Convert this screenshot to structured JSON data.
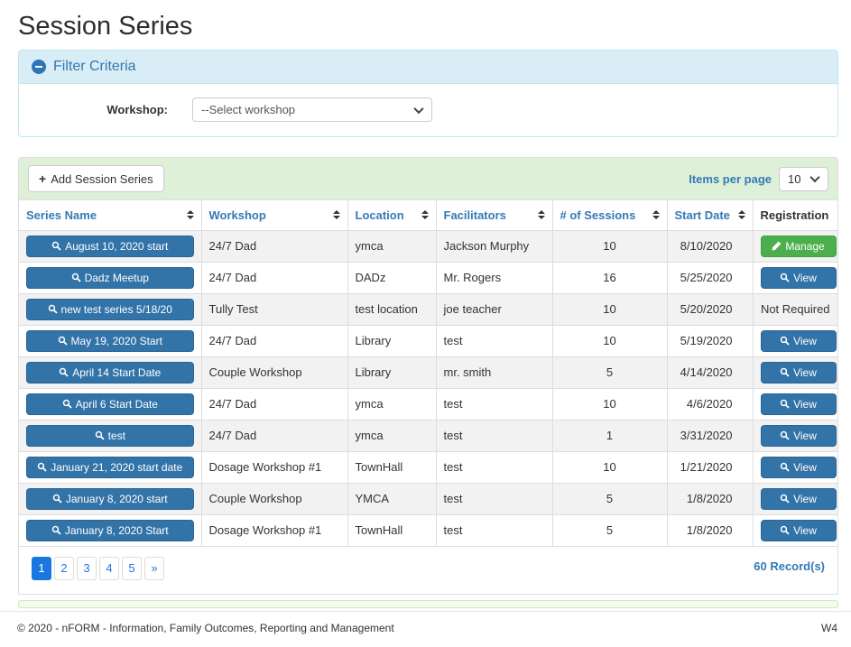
{
  "page": {
    "title": "Session Series"
  },
  "filter": {
    "title": "Filter Criteria",
    "collapse_icon": "minus-circle-icon",
    "workshop_label": "Workshop:",
    "workshop_value": "--Select workshop"
  },
  "toolbar": {
    "add_label": "Add Session Series",
    "add_icon": "plus-icon",
    "items_per_page_label": "Items per page",
    "items_per_page_value": "10"
  },
  "table": {
    "columns": [
      {
        "label": "Series Name",
        "sortable": true
      },
      {
        "label": "Workshop",
        "sortable": true
      },
      {
        "label": "Location",
        "sortable": true
      },
      {
        "label": "Facilitators",
        "sortable": true
      },
      {
        "label": "# of Sessions",
        "sortable": true
      },
      {
        "label": "Start Date",
        "sortable": true
      },
      {
        "label": "Registration",
        "sortable": false
      }
    ],
    "rows": [
      {
        "series_name": "August 10, 2020 start",
        "workshop": "24/7 Dad",
        "location": "ymca",
        "facilitators": "Jackson Murphy",
        "sessions": "10",
        "start_date": "8/10/2020",
        "registration": {
          "type": "manage",
          "label": "Manage"
        }
      },
      {
        "series_name": "Dadz Meetup",
        "workshop": "24/7 Dad",
        "location": "DADz",
        "facilitators": "Mr. Rogers",
        "sessions": "16",
        "start_date": "5/25/2020",
        "registration": {
          "type": "view",
          "label": "View"
        }
      },
      {
        "series_name": "new test series 5/18/20",
        "workshop": "Tully Test",
        "location": "test location",
        "facilitators": "joe teacher",
        "sessions": "10",
        "start_date": "5/20/2020",
        "registration": {
          "type": "text",
          "label": "Not Required"
        }
      },
      {
        "series_name": "May 19, 2020 Start",
        "workshop": "24/7 Dad",
        "location": "Library",
        "facilitators": "test",
        "sessions": "10",
        "start_date": "5/19/2020",
        "registration": {
          "type": "view",
          "label": "View"
        }
      },
      {
        "series_name": "April 14 Start Date",
        "workshop": "Couple Workshop",
        "location": "Library",
        "facilitators": "mr. smith",
        "sessions": "5",
        "start_date": "4/14/2020",
        "registration": {
          "type": "view",
          "label": "View"
        }
      },
      {
        "series_name": "April 6 Start Date",
        "workshop": "24/7 Dad",
        "location": "ymca",
        "facilitators": "test",
        "sessions": "10",
        "start_date": "4/6/2020",
        "registration": {
          "type": "view",
          "label": "View"
        }
      },
      {
        "series_name": "test",
        "workshop": "24/7 Dad",
        "location": "ymca",
        "facilitators": "test",
        "sessions": "1",
        "start_date": "3/31/2020",
        "registration": {
          "type": "view",
          "label": "View"
        }
      },
      {
        "series_name": "January 21, 2020 start date",
        "workshop": "Dosage Workshop #1",
        "location": "TownHall",
        "facilitators": "test",
        "sessions": "10",
        "start_date": "1/21/2020",
        "registration": {
          "type": "view",
          "label": "View"
        }
      },
      {
        "series_name": "January 8, 2020 start",
        "workshop": "Couple Workshop",
        "location": "YMCA",
        "facilitators": "test",
        "sessions": "5",
        "start_date": "1/8/2020",
        "registration": {
          "type": "view",
          "label": "View"
        }
      },
      {
        "series_name": "January 8, 2020 Start",
        "workshop": "Dosage Workshop #1",
        "location": "TownHall",
        "facilitators": "test",
        "sessions": "5",
        "start_date": "1/8/2020",
        "registration": {
          "type": "view",
          "label": "View"
        }
      }
    ]
  },
  "pagination": {
    "pages": [
      "1",
      "2",
      "3",
      "4",
      "5",
      "»"
    ],
    "active_index": 0,
    "records": "60 Record(s)"
  },
  "footer": {
    "copyright": "© 2020 - nFORM - Information, Family Outcomes, Reporting and Management",
    "version": "W4"
  },
  "colors": {
    "accent_blue": "#337ab7",
    "button_blue": "#3273a8",
    "success_green": "#4cae4c",
    "active_page_blue": "#1878e0",
    "filter_header_bg": "#d9edf7",
    "filter_border": "#bce8f1",
    "toolbar_bg": "#dff0d8",
    "stripe_bg": "#f2f2f2"
  }
}
